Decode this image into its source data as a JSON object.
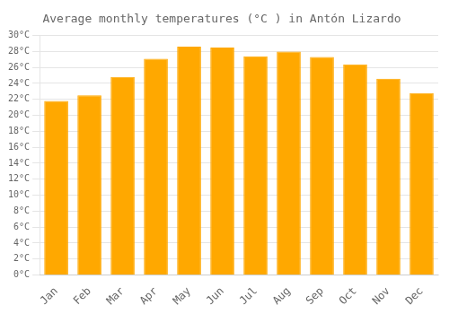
{
  "chart_data": {
    "type": "bar",
    "title": "Average monthly temperatures (°C ) in Antón Lizardo",
    "categories": [
      "Jan",
      "Feb",
      "Mar",
      "Apr",
      "May",
      "Jun",
      "Jul",
      "Aug",
      "Sep",
      "Oct",
      "Nov",
      "Dec"
    ],
    "values": [
      21.8,
      22.5,
      24.8,
      27.1,
      28.6,
      28.5,
      27.4,
      28.0,
      27.3,
      26.4,
      24.6,
      22.8
    ],
    "color": "#FFA800",
    "ylim": [
      0,
      30
    ],
    "yticks": [
      {
        "value": 0,
        "label": "0°C"
      },
      {
        "value": 2,
        "label": "2°C"
      },
      {
        "value": 4,
        "label": "4°C"
      },
      {
        "value": 6,
        "label": "6°C"
      },
      {
        "value": 8,
        "label": "8°C"
      },
      {
        "value": 10,
        "label": "10°C"
      },
      {
        "value": 12,
        "label": "12°C"
      },
      {
        "value": 14,
        "label": "14°C"
      },
      {
        "value": 16,
        "label": "16°C"
      },
      {
        "value": 18,
        "label": "18°C"
      },
      {
        "value": 20,
        "label": "20°C"
      },
      {
        "value": 22,
        "label": "22°C"
      },
      {
        "value": 24,
        "label": "24°C"
      },
      {
        "value": 26,
        "label": "26°C"
      },
      {
        "value": 28,
        "label": "28°C"
      },
      {
        "value": 30,
        "label": "30°C"
      }
    ],
    "grid": true
  }
}
